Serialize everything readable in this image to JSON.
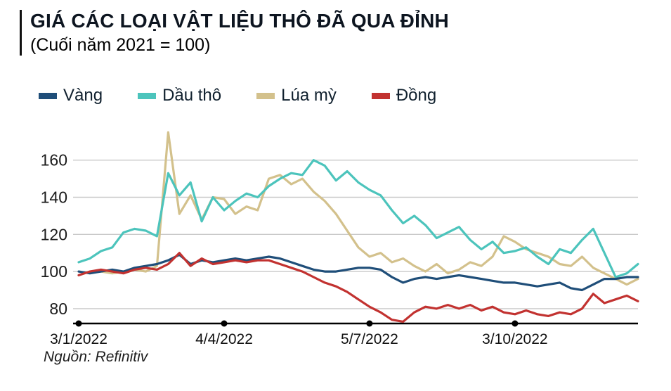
{
  "chart_data": {
    "type": "line",
    "title": "GIÁ CÁC LOẠI VẬT LIỆU THÔ ĐÃ QUA ĐỈNH",
    "subtitle": "(Cuối năm 2021 = 100)",
    "source": "Nguồn: Refinitiv",
    "x_unit": "weeks since 3/1/2022",
    "x_tick_labels": [
      "3/1/2022",
      "4/4/2022",
      "5/7/2022",
      "3/10/2022"
    ],
    "x_tick_indices": [
      0,
      13,
      26,
      39
    ],
    "y_ticks": [
      80,
      100,
      120,
      140,
      160
    ],
    "ylim": [
      72,
      180
    ],
    "grid": "horizontal",
    "legend_position": "top",
    "draw_order": [
      2,
      1,
      0,
      3
    ],
    "series": [
      {
        "name": "Vàng",
        "color": "#1f4e79",
        "values": [
          100,
          99,
          100,
          101,
          100,
          102,
          103,
          104,
          106,
          109,
          104,
          106,
          105,
          106,
          107,
          106,
          107,
          108,
          107,
          105,
          103,
          101,
          100,
          100,
          101,
          102,
          102,
          101,
          97,
          94,
          96,
          97,
          96,
          97,
          98,
          97,
          96,
          95,
          94,
          94,
          93,
          92,
          93,
          94,
          91,
          90,
          93,
          96,
          96,
          97,
          97
        ]
      },
      {
        "name": "Dầu thô",
        "color": "#4cc4bc",
        "values": [
          105,
          107,
          111,
          113,
          121,
          123,
          122,
          119,
          153,
          141,
          148,
          127,
          140,
          133,
          138,
          142,
          140,
          146,
          150,
          153,
          152,
          160,
          157,
          149,
          154,
          148,
          144,
          141,
          133,
          126,
          130,
          125,
          118,
          121,
          124,
          117,
          112,
          116,
          110,
          111,
          113,
          108,
          104,
          112,
          110,
          117,
          123,
          110,
          97,
          99,
          104
        ]
      },
      {
        "name": "Lúa mỳ",
        "color": "#d3c18c",
        "values": [
          98,
          100,
          100,
          99,
          100,
          101,
          100,
          103,
          175,
          131,
          141,
          128,
          140,
          139,
          131,
          135,
          133,
          150,
          152,
          147,
          150,
          143,
          138,
          131,
          122,
          113,
          108,
          110,
          105,
          107,
          103,
          100,
          104,
          99,
          101,
          105,
          103,
          108,
          119,
          116,
          112,
          110,
          108,
          104,
          103,
          108,
          102,
          99,
          96,
          93,
          96
        ]
      },
      {
        "name": "Đồng",
        "color": "#c23230",
        "values": [
          98,
          100,
          101,
          100,
          99,
          101,
          102,
          101,
          104,
          110,
          103,
          107,
          104,
          105,
          106,
          105,
          106,
          106,
          104,
          102,
          100,
          97,
          94,
          92,
          89,
          85,
          81,
          78,
          74,
          73,
          78,
          81,
          80,
          82,
          80,
          82,
          79,
          81,
          78,
          77,
          79,
          77,
          76,
          78,
          77,
          80,
          88,
          83,
          85,
          87,
          84
        ]
      }
    ]
  }
}
